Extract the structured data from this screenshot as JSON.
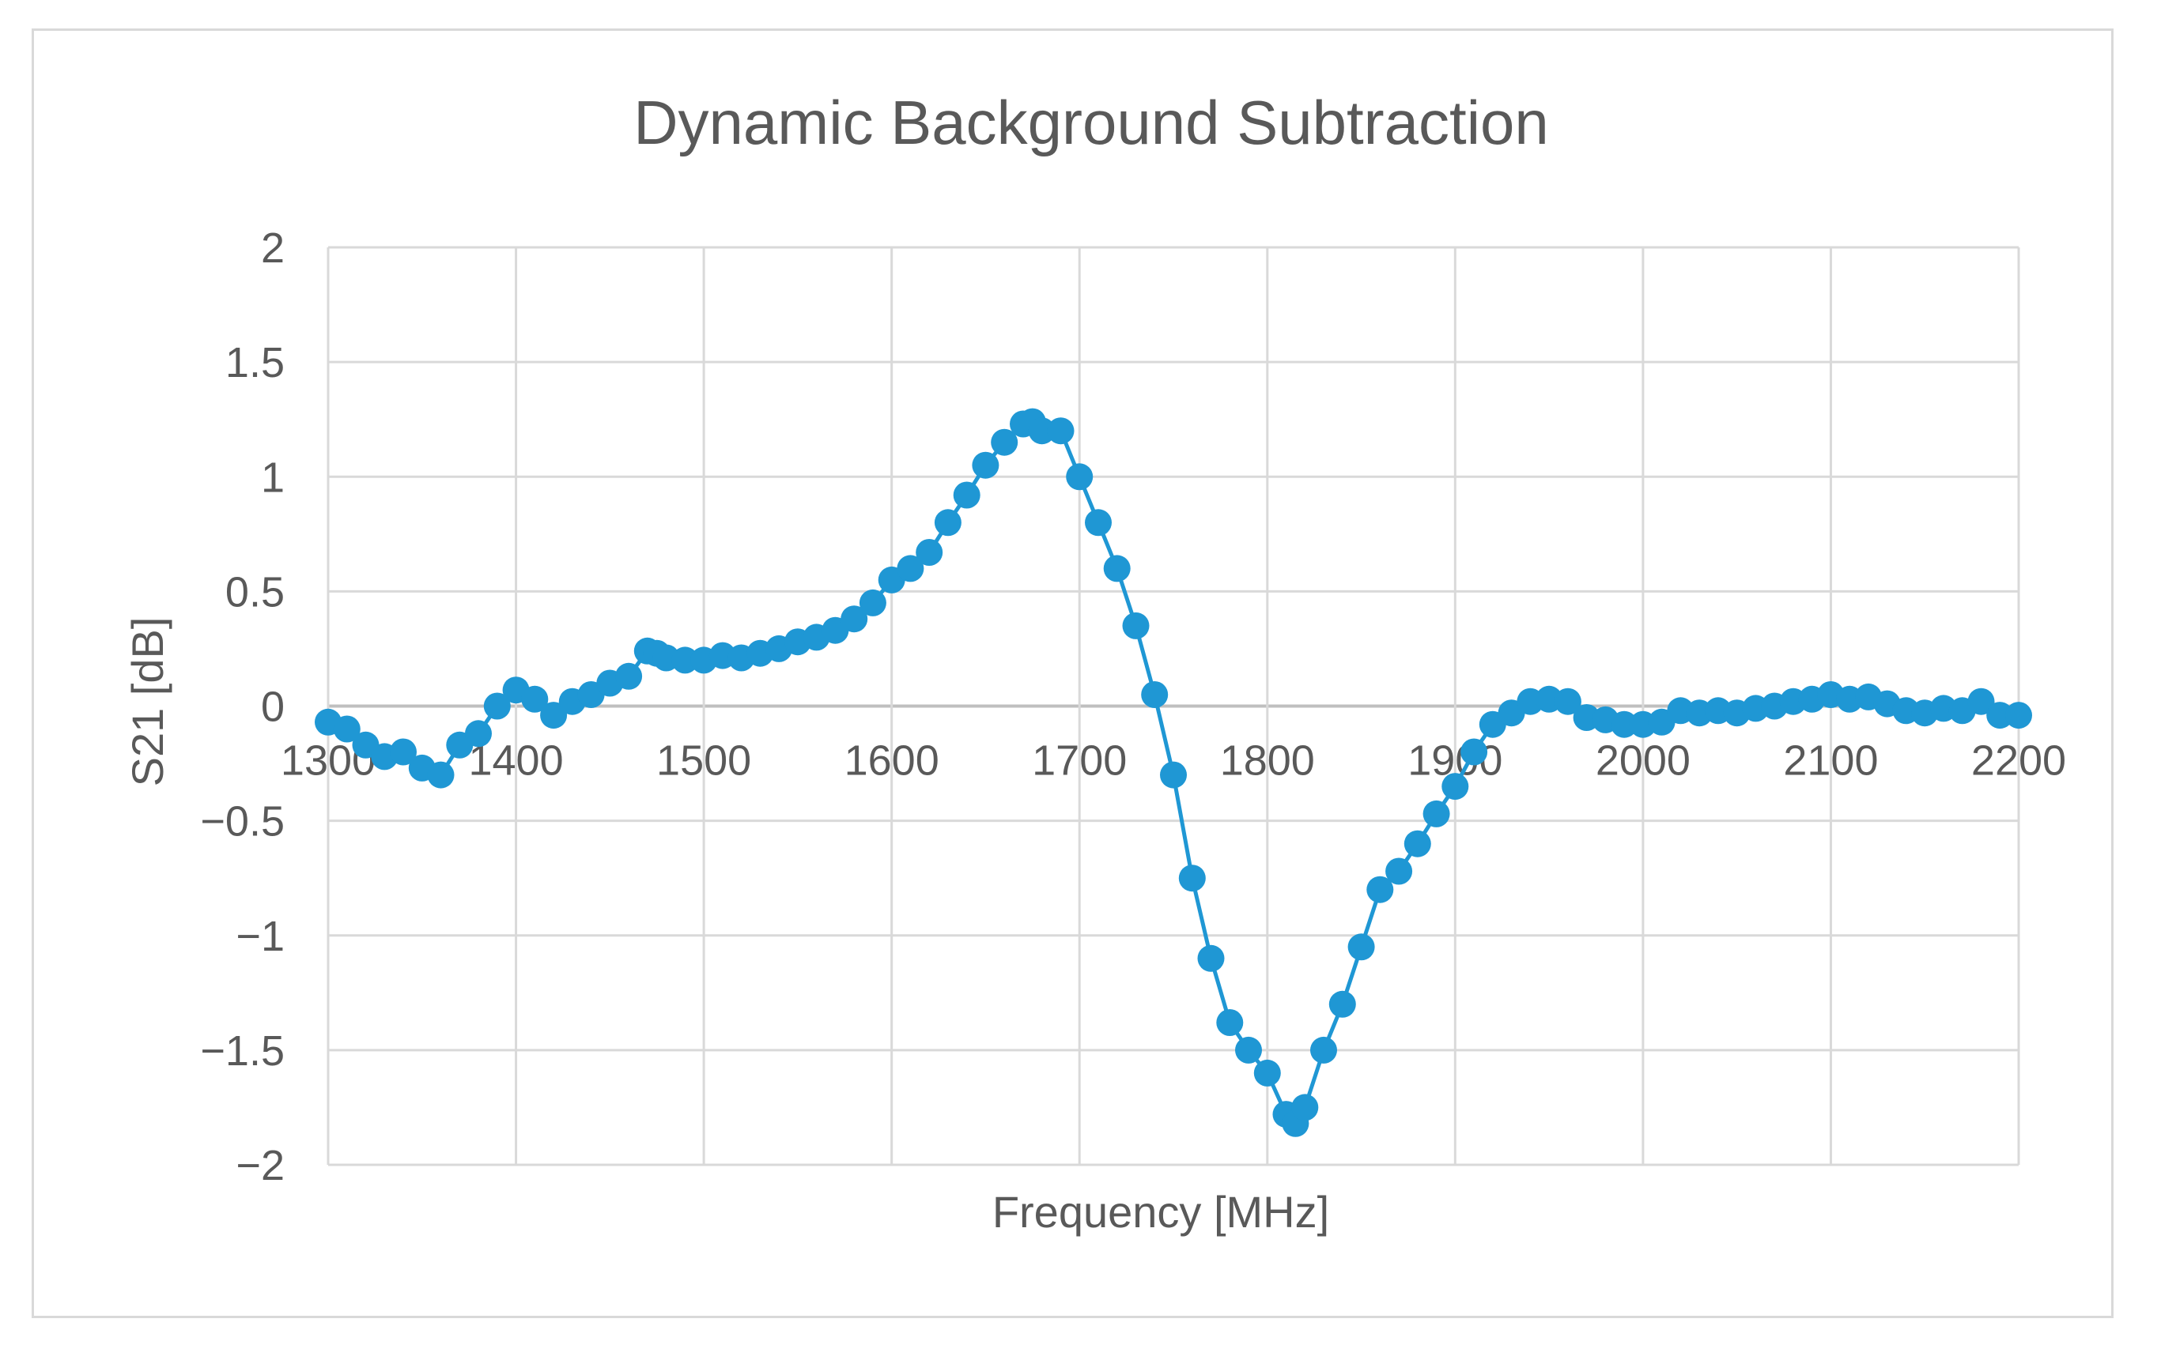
{
  "chart_data": {
    "type": "line",
    "title": "Dynamic Background Subtraction",
    "xlabel": "Frequency [MHz]",
    "ylabel": "S21 [dB]",
    "xlim": [
      1300,
      2200
    ],
    "ylim": [
      -2,
      2
    ],
    "xticks": [
      1300,
      1400,
      1500,
      1600,
      1700,
      1800,
      1900,
      2000,
      2100,
      2200
    ],
    "yticks": [
      2,
      1.5,
      1,
      0.5,
      0,
      -0.5,
      -1,
      -1.5,
      -2
    ],
    "ytick_labels": [
      "2",
      "1.5",
      "1",
      "0.5",
      "0",
      "−0.5",
      "−1",
      "−1.5",
      "−2"
    ],
    "grid": true,
    "color": "#1f97d4",
    "series": [
      {
        "name": "S21",
        "x": [
          1300,
          1310,
          1320,
          1330,
          1340,
          1350,
          1360,
          1370,
          1380,
          1390,
          1400,
          1410,
          1420,
          1430,
          1440,
          1450,
          1460,
          1470,
          1475,
          1480,
          1490,
          1500,
          1510,
          1520,
          1530,
          1540,
          1550,
          1560,
          1570,
          1580,
          1590,
          1600,
          1610,
          1620,
          1630,
          1640,
          1650,
          1660,
          1670,
          1675,
          1680,
          1690,
          1700,
          1710,
          1720,
          1730,
          1740,
          1750,
          1760,
          1770,
          1780,
          1790,
          1800,
          1810,
          1815,
          1820,
          1830,
          1840,
          1850,
          1860,
          1870,
          1880,
          1890,
          1900,
          1910,
          1920,
          1930,
          1940,
          1950,
          1960,
          1970,
          1980,
          1990,
          2000,
          2010,
          2020,
          2030,
          2040,
          2050,
          2060,
          2070,
          2080,
          2090,
          2100,
          2110,
          2120,
          2130,
          2140,
          2150,
          2160,
          2170,
          2180,
          2190,
          2200
        ],
        "y": [
          -0.07,
          -0.1,
          -0.17,
          -0.22,
          -0.2,
          -0.27,
          -0.3,
          -0.17,
          -0.12,
          0.0,
          0.07,
          0.03,
          -0.04,
          0.02,
          0.05,
          0.1,
          0.13,
          0.24,
          0.23,
          0.21,
          0.2,
          0.2,
          0.22,
          0.21,
          0.23,
          0.25,
          0.28,
          0.3,
          0.33,
          0.38,
          0.45,
          0.55,
          0.6,
          0.67,
          0.8,
          0.92,
          1.05,
          1.15,
          1.23,
          1.24,
          1.2,
          1.2,
          1.0,
          0.8,
          0.6,
          0.35,
          0.05,
          -0.3,
          -0.75,
          -1.1,
          -1.38,
          -1.5,
          -1.6,
          -1.78,
          -1.82,
          -1.75,
          -1.5,
          -1.3,
          -1.05,
          -0.8,
          -0.72,
          -0.6,
          -0.47,
          -0.35,
          -0.2,
          -0.08,
          -0.03,
          0.02,
          0.03,
          0.02,
          -0.05,
          -0.06,
          -0.08,
          -0.08,
          -0.07,
          -0.02,
          -0.03,
          -0.02,
          -0.03,
          -0.01,
          0.0,
          0.02,
          0.03,
          0.05,
          0.03,
          0.04,
          0.01,
          -0.02,
          -0.03,
          -0.01,
          -0.02,
          0.02,
          -0.04,
          -0.04
        ]
      }
    ]
  }
}
